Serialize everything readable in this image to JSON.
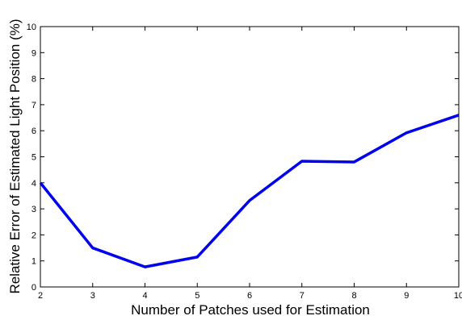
{
  "chart_data": {
    "type": "line",
    "title": "",
    "xlabel": "Number of Patches used for Estimation",
    "ylabel": "Relative Error of Estimated Light Position (%)",
    "xlim": [
      2,
      10
    ],
    "ylim": [
      0,
      10
    ],
    "xticks": [
      2,
      3,
      4,
      5,
      6,
      7,
      8,
      9,
      10
    ],
    "yticks": [
      0,
      1,
      2,
      3,
      4,
      5,
      6,
      7,
      8,
      9,
      10
    ],
    "grid": false,
    "legend": "none",
    "series": [
      {
        "color": "#0000ee",
        "x": [
          2,
          3,
          4,
          5,
          6,
          7,
          8,
          9,
          10
        ],
        "y": [
          4.0,
          1.5,
          0.77,
          1.15,
          3.32,
          4.83,
          4.8,
          5.92,
          6.6
        ]
      }
    ]
  }
}
